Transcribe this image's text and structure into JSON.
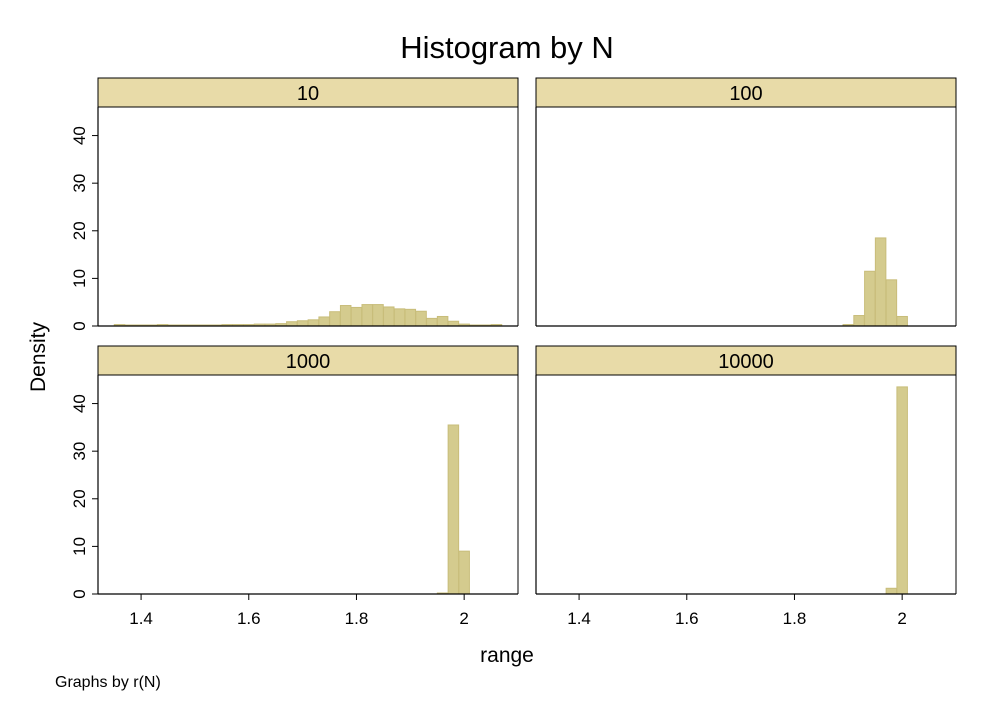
{
  "chart_data": {
    "type": "bar",
    "title": "Histogram by N",
    "xlabel": "range",
    "ylabel": "Density",
    "note": "Graphs by r(N)",
    "xlim": [
      1.32,
      2.1
    ],
    "ylim": [
      0,
      46
    ],
    "x_ticks": [
      {
        "value": 1.4,
        "label": "1.4"
      },
      {
        "value": 1.6,
        "label": "1.6"
      },
      {
        "value": 1.8,
        "label": "1.8"
      },
      {
        "value": 2.0,
        "label": "2"
      }
    ],
    "y_ticks": [
      {
        "value": 0,
        "label": "0"
      },
      {
        "value": 10,
        "label": "10"
      },
      {
        "value": 20,
        "label": "20"
      },
      {
        "value": 30,
        "label": "30"
      },
      {
        "value": 40,
        "label": "40"
      }
    ],
    "bar_width": 0.0195,
    "bar_color": "#d4cb8e",
    "bar_edge_color": "#c8bd7a",
    "strip_color": "#e8dba8",
    "grid": false,
    "panels": [
      {
        "label": "10",
        "bins": [
          {
            "x": 1.36,
            "y": 0.3
          },
          {
            "x": 1.38,
            "y": 0.1
          },
          {
            "x": 1.4,
            "y": 0.1
          },
          {
            "x": 1.42,
            "y": 0.2
          },
          {
            "x": 1.44,
            "y": 0.3
          },
          {
            "x": 1.46,
            "y": 0.2
          },
          {
            "x": 1.48,
            "y": 0.1
          },
          {
            "x": 1.5,
            "y": 0.2
          },
          {
            "x": 1.52,
            "y": 0.2
          },
          {
            "x": 1.54,
            "y": 0.2
          },
          {
            "x": 1.56,
            "y": 0.3
          },
          {
            "x": 1.58,
            "y": 0.3
          },
          {
            "x": 1.6,
            "y": 0.3
          },
          {
            "x": 1.62,
            "y": 0.4
          },
          {
            "x": 1.64,
            "y": 0.4
          },
          {
            "x": 1.66,
            "y": 0.5
          },
          {
            "x": 1.68,
            "y": 0.9
          },
          {
            "x": 1.7,
            "y": 1.1
          },
          {
            "x": 1.72,
            "y": 1.3
          },
          {
            "x": 1.74,
            "y": 1.9
          },
          {
            "x": 1.76,
            "y": 3.0
          },
          {
            "x": 1.78,
            "y": 4.3
          },
          {
            "x": 1.8,
            "y": 3.9
          },
          {
            "x": 1.82,
            "y": 4.5
          },
          {
            "x": 1.84,
            "y": 4.5
          },
          {
            "x": 1.86,
            "y": 4.0
          },
          {
            "x": 1.88,
            "y": 3.6
          },
          {
            "x": 1.9,
            "y": 3.5
          },
          {
            "x": 1.92,
            "y": 3.1
          },
          {
            "x": 1.94,
            "y": 1.6
          },
          {
            "x": 1.96,
            "y": 2.0
          },
          {
            "x": 1.98,
            "y": 1.0
          },
          {
            "x": 2.0,
            "y": 0.4
          },
          {
            "x": 2.02,
            "y": 0.2
          },
          {
            "x": 2.04,
            "y": 0.1
          },
          {
            "x": 2.06,
            "y": 0.3
          }
        ]
      },
      {
        "label": "100",
        "bins": [
          {
            "x": 1.9,
            "y": 0.3
          },
          {
            "x": 1.92,
            "y": 2.2
          },
          {
            "x": 1.94,
            "y": 11.5
          },
          {
            "x": 1.96,
            "y": 18.5
          },
          {
            "x": 1.98,
            "y": 9.7
          },
          {
            "x": 2.0,
            "y": 2.0
          }
        ]
      },
      {
        "label": "1000",
        "bins": [
          {
            "x": 1.96,
            "y": 0.2
          },
          {
            "x": 1.98,
            "y": 35.5
          },
          {
            "x": 2.0,
            "y": 9.0
          }
        ]
      },
      {
        "label": "10000",
        "bins": [
          {
            "x": 1.98,
            "y": 1.2
          },
          {
            "x": 2.0,
            "y": 43.5
          }
        ]
      }
    ]
  }
}
